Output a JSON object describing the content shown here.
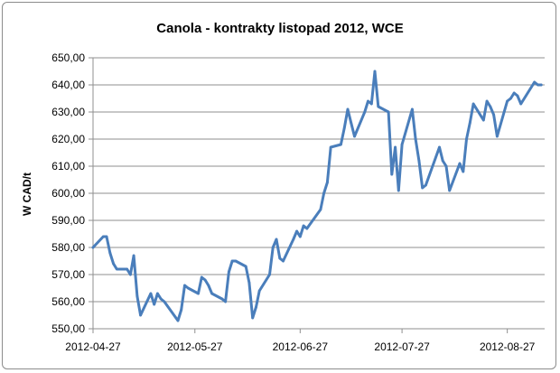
{
  "chart_data": {
    "type": "line",
    "title": "Canola - kontrakty listopad 2012, WCE",
    "xlabel": "",
    "ylabel": "W CAD/t",
    "ylim": [
      550,
      650
    ],
    "yticks": [
      "550,00",
      "560,00",
      "570,00",
      "580,00",
      "590,00",
      "600,00",
      "610,00",
      "620,00",
      "630,00",
      "640,00",
      "650,00"
    ],
    "xticks": [
      "2012-04-27",
      "2012-05-27",
      "2012-06-27",
      "2012-07-27",
      "2012-08-27"
    ],
    "grid": true,
    "legend": "none",
    "line_color": "#4a7ebb",
    "series": [
      {
        "x": [
          "2012-04-27",
          "2012-04-30",
          "2012-05-01",
          "2012-05-02",
          "2012-05-03",
          "2012-05-04",
          "2012-05-07",
          "2012-05-08",
          "2012-05-09",
          "2012-05-10",
          "2012-05-11",
          "2012-05-14",
          "2012-05-15",
          "2012-05-16",
          "2012-05-17",
          "2012-05-18",
          "2012-05-22",
          "2012-05-23",
          "2012-05-24",
          "2012-05-25",
          "2012-05-28",
          "2012-05-29",
          "2012-05-30",
          "2012-05-31",
          "2012-06-01",
          "2012-06-04",
          "2012-06-05",
          "2012-06-06",
          "2012-06-07",
          "2012-06-08",
          "2012-06-11",
          "2012-06-12",
          "2012-06-13",
          "2012-06-14",
          "2012-06-15",
          "2012-06-18",
          "2012-06-19",
          "2012-06-20",
          "2012-06-21",
          "2012-06-22",
          "2012-06-25",
          "2012-06-26",
          "2012-06-27",
          "2012-06-28",
          "2012-06-29",
          "2012-07-03",
          "2012-07-04",
          "2012-07-05",
          "2012-07-06",
          "2012-07-09",
          "2012-07-10",
          "2012-07-11",
          "2012-07-12",
          "2012-07-13",
          "2012-07-16",
          "2012-07-17",
          "2012-07-18",
          "2012-07-19",
          "2012-07-20",
          "2012-07-23",
          "2012-07-24",
          "2012-07-25",
          "2012-07-26",
          "2012-07-27",
          "2012-07-30",
          "2012-07-31",
          "2012-08-01",
          "2012-08-02",
          "2012-08-03",
          "2012-08-07",
          "2012-08-08",
          "2012-08-09",
          "2012-08-10",
          "2012-08-13",
          "2012-08-14",
          "2012-08-15",
          "2012-08-16",
          "2012-08-17",
          "2012-08-20",
          "2012-08-21",
          "2012-08-22",
          "2012-08-23",
          "2012-08-24",
          "2012-08-27",
          "2012-08-28",
          "2012-08-29",
          "2012-08-30",
          "2012-08-31",
          "2012-09-04",
          "2012-09-05",
          "2012-09-06"
        ],
        "y": [
          580,
          584,
          584,
          578,
          574,
          572,
          572,
          570,
          577,
          562,
          555,
          563,
          559,
          563,
          561,
          560,
          553,
          557,
          566,
          565,
          563,
          569,
          568,
          566,
          563,
          561,
          560,
          571,
          575,
          575,
          573,
          567,
          554,
          558,
          564,
          570,
          580,
          583,
          576,
          575,
          583,
          586,
          584,
          588,
          587,
          594,
          600,
          604,
          617,
          618,
          624,
          631,
          626,
          621,
          630,
          634,
          633,
          645,
          632,
          630,
          607,
          617,
          601,
          618,
          631,
          620,
          612,
          602,
          603,
          617,
          612,
          610,
          601,
          611,
          608,
          620,
          626,
          633,
          627,
          634,
          632,
          629,
          621,
          634,
          635,
          637,
          636,
          633,
          641,
          640,
          640
        ]
      }
    ]
  }
}
